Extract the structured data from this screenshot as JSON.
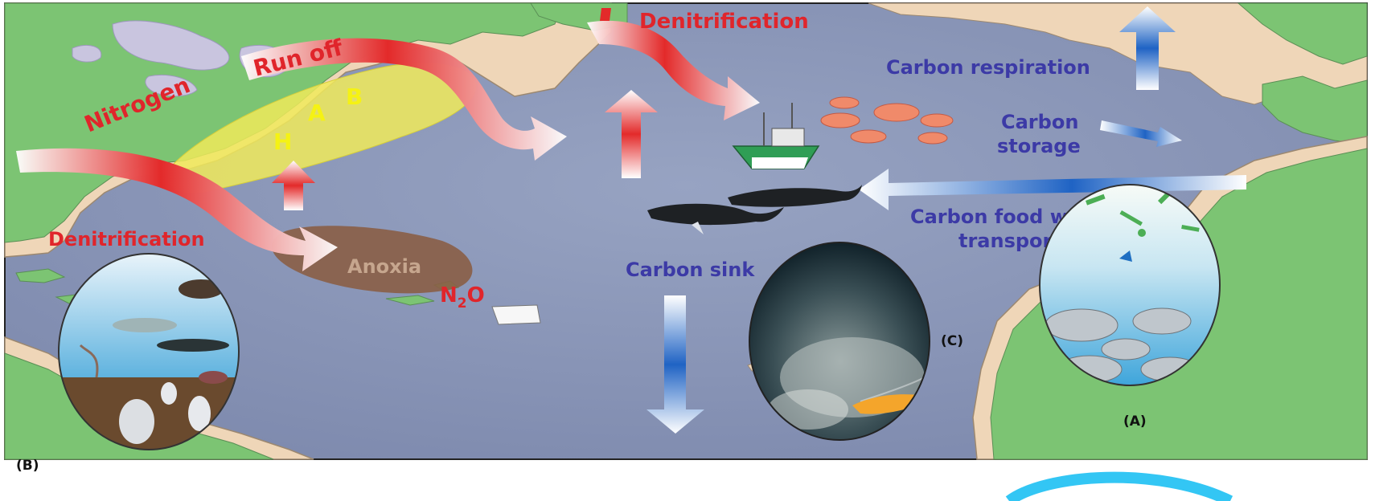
{
  "labels": {
    "nitrogen": "Nitrogen",
    "run_off": "Run off",
    "denitrification_top": "Denitrification",
    "denitrification_left": "Denitrification",
    "hab_h": "H",
    "hab_a": "A",
    "hab_b": "B",
    "anoxia": "Anoxia",
    "n2o_n": "N",
    "n2o_sub": "2",
    "n2o_o": "O",
    "carbon_respiration": "Carbon respiration",
    "carbon_storage_1": "Carbon",
    "carbon_storage_2": "storage",
    "food_web_1": "Carbon food web",
    "food_web_2": "transport",
    "carbon_sink": "Carbon sink",
    "panel_a": "(A)",
    "panel_b": "(B)",
    "panel_c": "(C)"
  },
  "colors": {
    "ocean": "#8c98b8",
    "ocean_deep": "#7f8bb0",
    "land_green": "#7cc473",
    "land_sand": "#efd6b8",
    "lake": "#c9c5df",
    "nitrogen_red": "#e0252b",
    "carbon_blue": "#3c3aa6",
    "hab_yellow": "#f0ea5a",
    "anoxia_brown": "#8a5e46",
    "highlight_arc": "#33c6f4"
  }
}
